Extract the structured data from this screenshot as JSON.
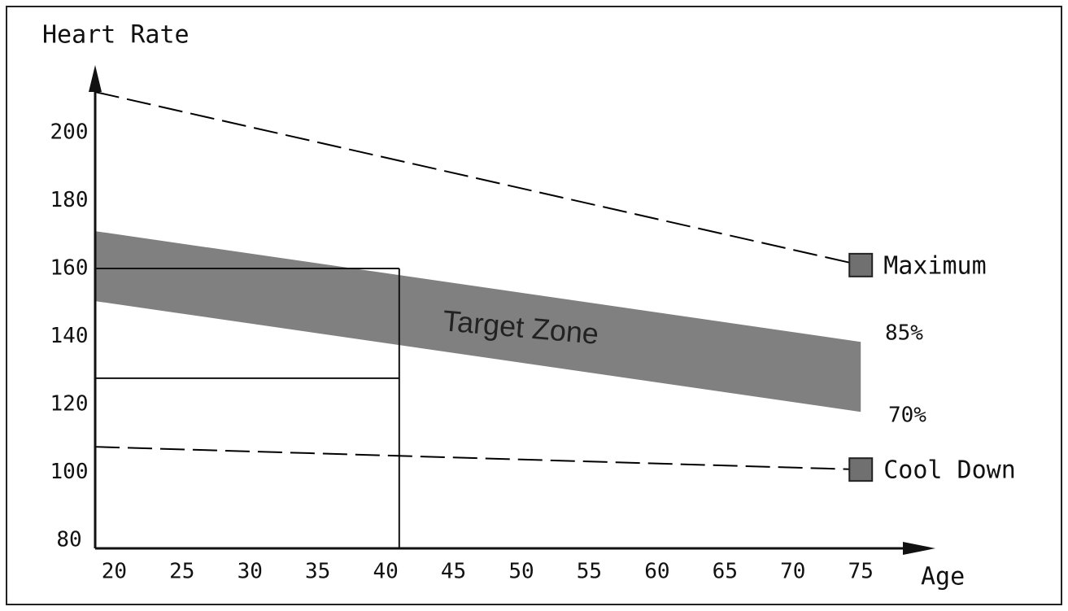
{
  "chart_data": {
    "type": "line",
    "y_label": "Heart Rate",
    "x_label": "Age",
    "x": [
      18.6,
      75
    ],
    "xlim": [
      18.6,
      80.5
    ],
    "xticks": [
      20,
      25,
      30,
      35,
      40,
      45,
      50,
      55,
      60,
      65,
      70,
      75
    ],
    "ylim": [
      77.6,
      218.7
    ],
    "yticks": [
      80,
      100,
      120,
      140,
      160,
      180,
      200
    ],
    "series": [
      {
        "name": "Maximum",
        "color": "#000000",
        "values": [
          212,
          161
        ]
      },
      {
        "name": "Cool Down",
        "color": "#000000",
        "values": [
          107.5,
          100.8
        ]
      }
    ],
    "band": {
      "label": "Target Zone",
      "color": "#808080",
      "upper": {
        "name": "85%",
        "values": [
          171,
          138.4
        ]
      },
      "lower": {
        "name": "70%",
        "values": [
          150.4,
          117.8
        ]
      }
    },
    "guides": {
      "x": 41,
      "y": [
        160,
        127.7
      ]
    }
  }
}
